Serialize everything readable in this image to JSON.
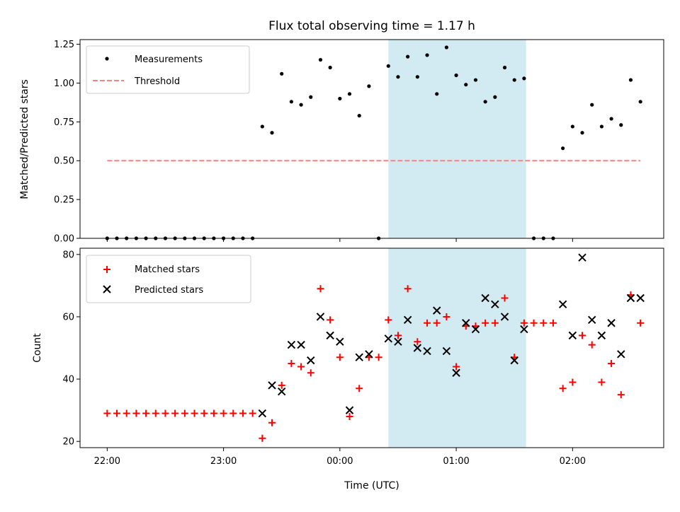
{
  "chart_data": [
    {
      "type": "scatter",
      "title": "Flux total observing time = 1.17 h",
      "xlabel": "",
      "ylabel": "Matched/Predicted stars",
      "xlim": [
        "21:46",
        "02:47"
      ],
      "ylim": [
        0,
        1.28
      ],
      "yticks": [
        "0.00",
        "0.25",
        "0.50",
        "0.75",
        "1.00",
        "1.25"
      ],
      "shaded_region": {
        "start": "00:25",
        "end": "01:36",
        "color": "#add8e6"
      },
      "legend": {
        "position": "top-left",
        "items": [
          "Measurements",
          "Threshold"
        ]
      },
      "series": [
        {
          "name": "Measurements",
          "style": "dots",
          "color": "#000000",
          "x": [
            "22:00",
            "22:05",
            "22:10",
            "22:15",
            "22:20",
            "22:25",
            "22:30",
            "22:35",
            "22:40",
            "22:45",
            "22:50",
            "22:55",
            "23:00",
            "23:05",
            "23:10",
            "23:15",
            "23:20",
            "23:25",
            "23:30",
            "23:35",
            "23:40",
            "23:45",
            "23:50",
            "23:55",
            "00:00",
            "00:05",
            "00:10",
            "00:15",
            "00:20",
            "00:25",
            "00:30",
            "00:35",
            "00:40",
            "00:45",
            "00:50",
            "00:55",
            "01:00",
            "01:05",
            "01:10",
            "01:15",
            "01:20",
            "01:25",
            "01:30",
            "01:35",
            "01:40",
            "01:45",
            "01:50",
            "01:55",
            "02:00",
            "02:05",
            "02:10",
            "02:15",
            "02:20",
            "02:25",
            "02:30",
            "02:35"
          ],
          "y": [
            0,
            0,
            0,
            0,
            0,
            0,
            0,
            0,
            0,
            0,
            0,
            0,
            0,
            0,
            0,
            0,
            0.72,
            0.68,
            1.06,
            0.88,
            0.86,
            0.91,
            1.15,
            1.1,
            0.9,
            0.93,
            0.79,
            0.98,
            0,
            1.11,
            1.04,
            1.17,
            1.04,
            1.18,
            0.93,
            1.23,
            1.05,
            0.99,
            1.02,
            0.88,
            0.91,
            1.1,
            1.02,
            1.03,
            0,
            0,
            0,
            0.58,
            0.72,
            0.68,
            0.86,
            0.72,
            0.77,
            0.73,
            1.02,
            0.88
          ]
        },
        {
          "name": "Threshold",
          "style": "dashed-line",
          "color": "#ff7f7f",
          "x": [
            "22:00",
            "02:35"
          ],
          "y": [
            0.5,
            0.5
          ]
        }
      ]
    },
    {
      "type": "scatter",
      "title": "",
      "xlabel": "Time (UTC)",
      "ylabel": "Count",
      "xlim": [
        "21:46",
        "02:47"
      ],
      "xticks": [
        "22:00",
        "23:00",
        "00:00",
        "01:00",
        "02:00"
      ],
      "ylim": [
        18,
        82
      ],
      "yticks": [
        "20",
        "40",
        "60",
        "80"
      ],
      "shaded_region": {
        "start": "00:25",
        "end": "01:36",
        "color": "#add8e6"
      },
      "legend": {
        "position": "top-left",
        "items": [
          "Matched stars",
          "Predicted stars"
        ]
      },
      "series": [
        {
          "name": "Matched stars",
          "marker": "plus",
          "color": "#ff0000",
          "x": [
            "22:00",
            "22:05",
            "22:10",
            "22:15",
            "22:20",
            "22:25",
            "22:30",
            "22:35",
            "22:40",
            "22:45",
            "22:50",
            "22:55",
            "23:00",
            "23:05",
            "23:10",
            "23:15",
            "23:20",
            "23:25",
            "23:30",
            "23:35",
            "23:40",
            "23:45",
            "23:50",
            "23:55",
            "00:00",
            "00:05",
            "00:10",
            "00:15",
            "00:20",
            "00:25",
            "00:30",
            "00:35",
            "00:40",
            "00:45",
            "00:50",
            "00:55",
            "01:00",
            "01:05",
            "01:10",
            "01:15",
            "01:20",
            "01:25",
            "01:30",
            "01:35",
            "01:40",
            "01:45",
            "01:50",
            "01:55",
            "02:00",
            "02:05",
            "02:10",
            "02:15",
            "02:20",
            "02:25",
            "02:30",
            "02:35"
          ],
          "y": [
            29,
            29,
            29,
            29,
            29,
            29,
            29,
            29,
            29,
            29,
            29,
            29,
            29,
            29,
            29,
            29,
            21,
            26,
            38,
            45,
            44,
            42,
            69,
            59,
            47,
            28,
            37,
            47,
            47,
            59,
            54,
            69,
            52,
            58,
            58,
            60,
            44,
            57,
            57,
            58,
            58,
            66,
            47,
            58,
            58,
            58,
            58,
            37,
            39,
            54,
            51,
            39,
            45,
            35,
            67,
            58
          ]
        },
        {
          "name": "Predicted stars",
          "marker": "x",
          "color": "#000000",
          "x": [
            "23:20",
            "23:25",
            "23:30",
            "23:35",
            "23:40",
            "23:45",
            "23:50",
            "23:55",
            "00:00",
            "00:05",
            "00:10",
            "00:15",
            "00:25",
            "00:30",
            "00:35",
            "00:40",
            "00:45",
            "00:50",
            "00:55",
            "01:00",
            "01:05",
            "01:10",
            "01:15",
            "01:20",
            "01:25",
            "01:30",
            "01:35",
            "01:55",
            "02:00",
            "02:05",
            "02:10",
            "02:15",
            "02:20",
            "02:25",
            "02:30",
            "02:35"
          ],
          "y": [
            29,
            38,
            36,
            51,
            51,
            46,
            60,
            54,
            52,
            30,
            47,
            48,
            53,
            52,
            59,
            50,
            49,
            62,
            49,
            42,
            58,
            56,
            66,
            64,
            60,
            46,
            56,
            64,
            54,
            79,
            59,
            54,
            58,
            48,
            66,
            66
          ]
        }
      ]
    }
  ]
}
